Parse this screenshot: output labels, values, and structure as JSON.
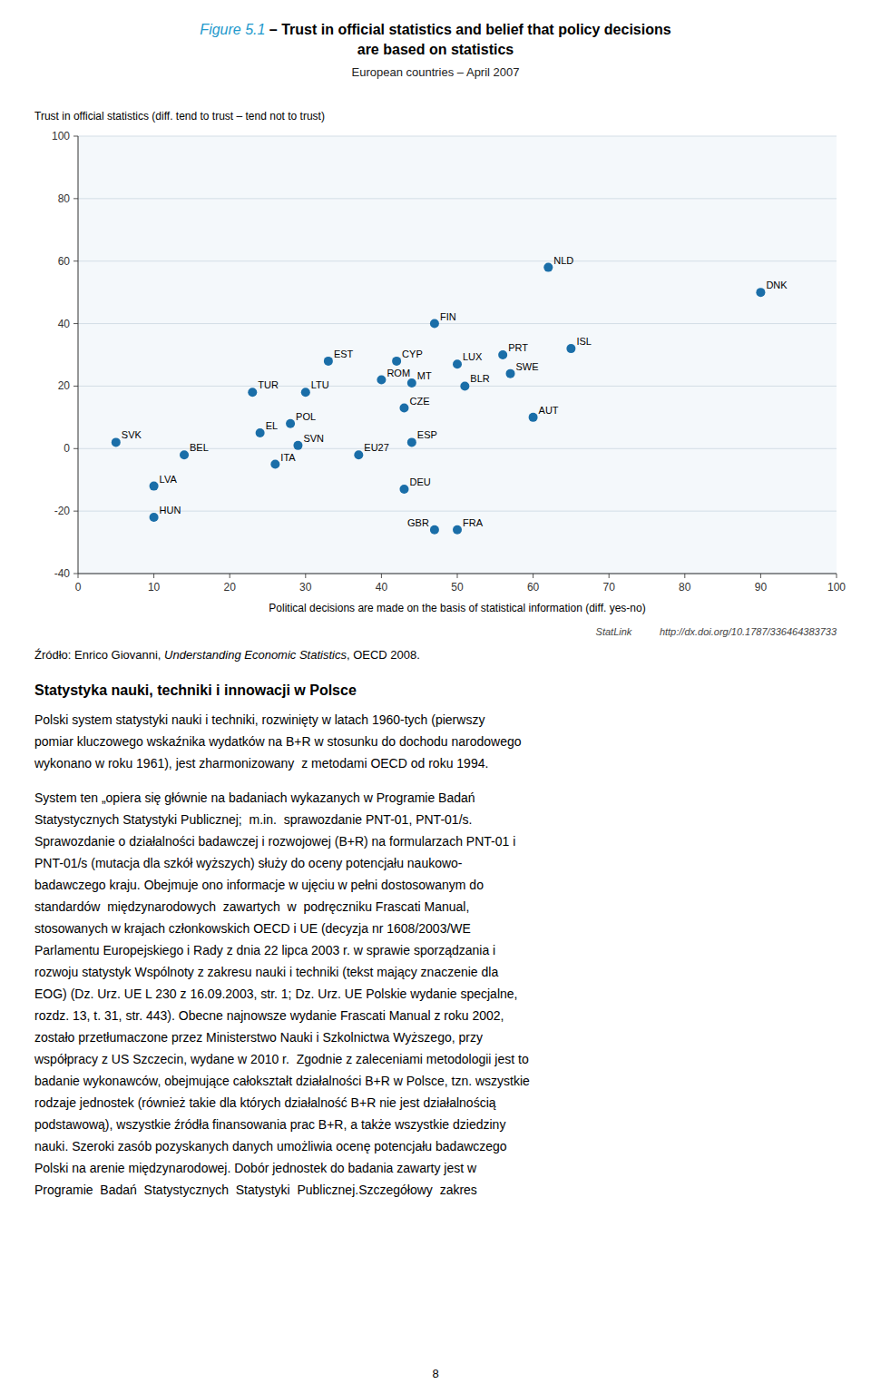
{
  "chart_data": {
    "type": "scatter",
    "title": [
      "Figure 5.1",
      " – Trust in official statistics and belief that policy decisions",
      "are based on statistics"
    ],
    "subtitle": "European countries – April 2007",
    "ylabel": "Trust in official statistics (diff. tend to trust – tend not to trust)",
    "xlabel": "Political decisions are made on the basis of statistical information (diff. yes-no)",
    "labels": [
      "SVK",
      "BEL",
      "LVA",
      "HUN",
      "EL",
      "TUR",
      "ITA",
      "POL",
      "LTU",
      "SVN",
      "EST",
      "EU27",
      "ROM",
      "CYP",
      "MT",
      "CZE",
      "DEU",
      "ESP",
      "FIN",
      "LUX",
      "BLR",
      "GBR",
      "FRA",
      "PRT",
      "SWE",
      "AUT",
      "NLD",
      "ISL",
      "DNK"
    ],
    "x": [
      5,
      14,
      10,
      10,
      24,
      23,
      26,
      28,
      30,
      29,
      33,
      37,
      40,
      42,
      44,
      43,
      43,
      44,
      47,
      50,
      51,
      47,
      50,
      56,
      57,
      60,
      62,
      65,
      90
    ],
    "values": [
      2,
      -2,
      -12,
      -22,
      5,
      18,
      -5,
      8,
      18,
      1,
      28,
      -2,
      22,
      28,
      21,
      13,
      -13,
      2,
      40,
      27,
      20,
      -26,
      -26,
      30,
      24,
      10,
      58,
      32,
      50
    ],
    "color": "#1a6ea8",
    "xlim": [
      0,
      100
    ],
    "ylim": [
      -40,
      100
    ],
    "xticks": [
      0,
      10,
      20,
      30,
      40,
      50,
      60,
      70,
      80,
      90,
      100
    ],
    "yticks": [
      -40,
      -20,
      0,
      20,
      40,
      60,
      80,
      100
    ],
    "grid": true,
    "data_labels": true
  },
  "page_text": {
    "statlink": "StatLink          http://dx.doi.org/10.1787/336464383733",
    "source": [
      "Źródło: Enrico Giovanni, ",
      "Understanding Economic Statistics",
      ", OECD 2008."
    ],
    "section_title": "Statystyka nauki, techniki i innowacji w Polsce",
    "body_paragraphs": [
      [
        "Polski system statystyki nauki i techniki, rozwinięty w latach 1960-tych (pierwszy",
        "pomiar kluczowego wskaźnika wydatków na B+R w stosunku do dochodu narodowego",
        "wykonano w roku 1961), jest zharmonizowany  z metodami OECD od roku 1994."
      ],
      [
        "System ten „opiera się głównie na badaniach wykazanych w Programie Badań",
        "Statystycznych Statystyki Publicznej;  m.in.  sprawozdanie PNT-01, PNT-01/s.",
        "Sprawozdanie o działalności badawczej i rozwojowej (B+R) na formularzach PNT-01 i",
        "PNT-01/s (mutacja dla szkół wyższych) służy do oceny potencjału naukowo-",
        "badawczego kraju. Obejmuje ono informacje w ujęciu w pełni dostosowanym do",
        "standardów  międzynarodowych  zawartych  w  podręczniku Frascati Manual,",
        "stosowanych w krajach członkowskich OECD i UE (decyzja nr 1608/2003/WE",
        "Parlamentu Europejskiego i Rady z dnia 22 lipca 2003 r. w sprawie sporządzania i",
        "rozwoju statystyk Wspólnoty z zakresu nauki i techniki (tekst mający znaczenie dla",
        "EOG) (Dz. Urz. UE L 230 z 16.09.2003, str. 1; Dz. Urz. UE Polskie wydanie specjalne,",
        "rozdz. 13, t. 31, str. 443). Obecne najnowsze wydanie Frascati Manual z roku 2002,",
        "zostało przetłumaczone przez Ministerstwo Nauki i Szkolnictwa Wyższego, przy",
        "współpracy z US Szczecin, wydane w 2010 r.  Zgodnie z zaleceniami metodologii jest to",
        "badanie wykonawców, obejmujące całokształt działalności B+R w Polsce, tzn. wszystkie",
        "rodzaje jednostek (również takie dla których działalność B+R nie jest działalnością",
        "podstawową), wszystkie źródła finansowania prac B+R, a także wszystkie dziedziny",
        "nauki. Szeroki zasób pozyskanych danych umożliwia ocenę potencjału badawczego",
        "Polski na arenie międzynarodowej. Dobór jednostek do badania zawarty jest w",
        "Programie  Badań  Statystycznych  Statystyki  Publicznej.Szczegółowy  zakres"
      ]
    ],
    "page_number": "8"
  }
}
